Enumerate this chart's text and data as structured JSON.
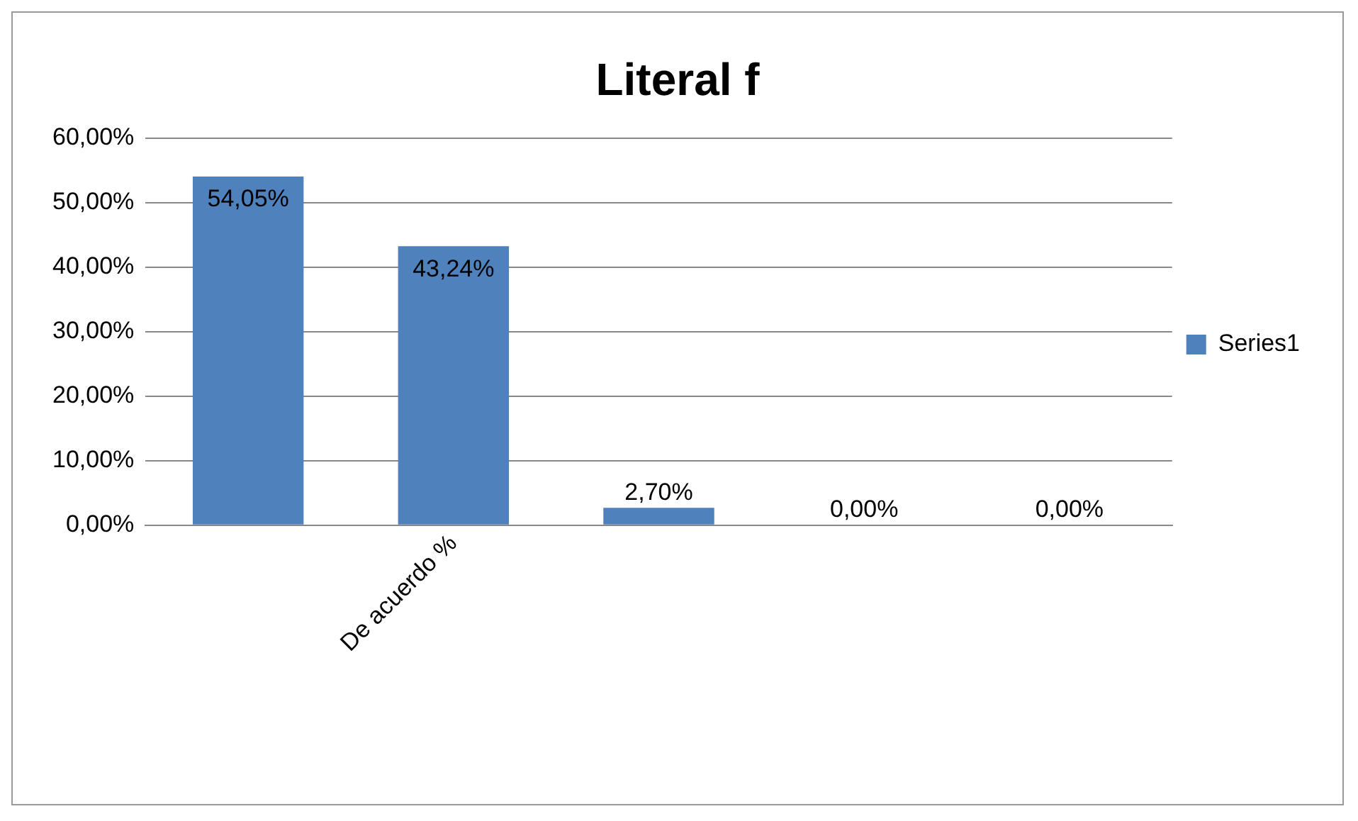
{
  "chart_data": {
    "type": "bar",
    "title": "Literal f",
    "categories": [
      null,
      "De acuerdo %",
      null,
      null,
      null
    ],
    "series": [
      {
        "name": "Series1",
        "color": "#4f81bd",
        "values": [
          54.05,
          43.24,
          2.7,
          0,
          0
        ],
        "value_labels": [
          "54,05%",
          "43,24%",
          "2,70%",
          "0,00%",
          "0,00%"
        ]
      }
    ],
    "ylim": [
      0,
      60
    ],
    "yticks": [
      {
        "value": 0,
        "label": "0,00%"
      },
      {
        "value": 10,
        "label": "10,00%"
      },
      {
        "value": 20,
        "label": "20,00%"
      },
      {
        "value": 30,
        "label": "30,00%"
      },
      {
        "value": 40,
        "label": "40,00%"
      },
      {
        "value": 50,
        "label": "50,00%"
      },
      {
        "value": 60,
        "label": "60,00%"
      }
    ],
    "grid": "y",
    "legend": "right"
  }
}
